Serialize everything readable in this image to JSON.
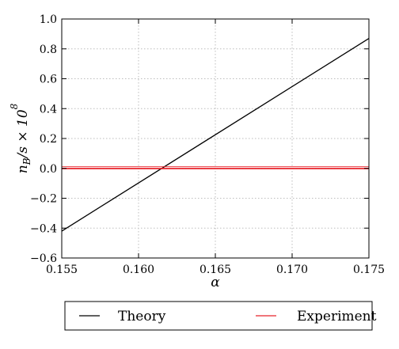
{
  "chart_data": {
    "type": "line",
    "xlabel": "α",
    "ylabel": "n_B/s × 10^8",
    "xlim": [
      0.155,
      0.175
    ],
    "ylim": [
      -0.6,
      1.0
    ],
    "x_ticks": [
      "0.155",
      "0.160",
      "0.165",
      "0.170",
      "0.175"
    ],
    "y_ticks": [
      "−0.6",
      "−0.4",
      "−0.2",
      "0.0",
      "0.2",
      "0.4",
      "0.6",
      "0.8",
      "1.0"
    ],
    "x_tick_values": [
      0.155,
      0.16,
      0.165,
      0.17,
      0.175
    ],
    "y_tick_values": [
      -0.6,
      -0.4,
      -0.2,
      0.0,
      0.2,
      0.4,
      0.6,
      0.8,
      1.0
    ],
    "grid": true,
    "legend_position": "bottom",
    "series": [
      {
        "name": "Theory",
        "color": "#000000",
        "x": [
          0.155,
          0.175
        ],
        "y": [
          -0.42,
          0.87
        ]
      },
      {
        "name": "Experiment",
        "color": "#e8232a",
        "x": [
          0.155,
          0.175
        ],
        "y": [
          0.0,
          0.0
        ],
        "band": [
          -0.004,
          0.012
        ]
      }
    ]
  }
}
